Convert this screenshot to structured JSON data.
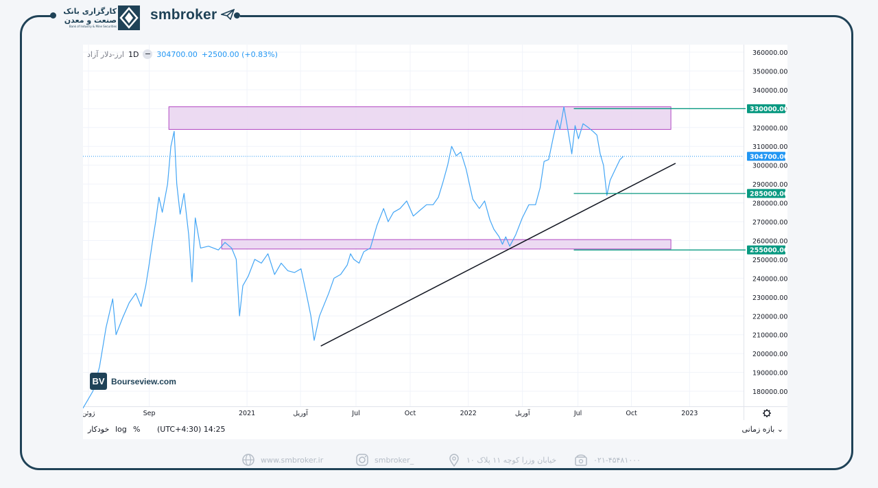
{
  "brand": {
    "bank_line1": "کارگزاری بانک",
    "bank_line2": "صنعت و معدن",
    "bank_line3": "Bank of Industry & Mine Securities",
    "site": "smbroker"
  },
  "symbol": {
    "name": "ارز-دلار آزاد",
    "timeframe": "1D",
    "price": "304700.00",
    "change": "+2500.00 (+0.83%)"
  },
  "watermark": {
    "badge": "BV",
    "text": "Bourseview.com"
  },
  "bottom_bar": {
    "auto": "خودکار",
    "log": "log",
    "percent": "%",
    "time": "(UTC+4:30) 14:25",
    "range": "بازه زمانی ⌄"
  },
  "footer": {
    "website": "www.smbroker.ir",
    "instagram": "smbroker_",
    "address": "خیابان وزرا کوچه ۱۱ پلاک ۱۰",
    "phone": "۰۲۱-۴۵۴۸۱۰۰۰"
  },
  "colors": {
    "frame": "#1f4257",
    "line": "#42a5f5",
    "zone_fill": "#e9d4f0",
    "zone_stroke": "#b146c2",
    "level": "#089981",
    "trendline": "#131722",
    "price_label": "#2196f3"
  },
  "chart_data": {
    "type": "line",
    "ylim": [
      172000,
      364000
    ],
    "y_ticks": [
      180000,
      190000,
      200000,
      210000,
      220000,
      230000,
      240000,
      250000,
      260000,
      270000,
      280000,
      290000,
      300000,
      310000,
      320000,
      330000,
      340000,
      350000,
      360000
    ],
    "y_tick_labels": [
      "180000.00",
      "190000.00",
      "200000.00",
      "210000.00",
      "220000.00",
      "230000.00",
      "240000.00",
      "250000.00",
      "260000.00",
      "270000.00",
      "280000.00",
      "290000.00",
      "300000.00",
      "310000.00",
      "320000.00",
      "330000.00",
      "340000.00",
      "350000.00",
      "360000.00"
    ],
    "x_ticks": [
      "ژوئن",
      "Sep",
      "2021",
      "آوریل",
      "Jul",
      "Oct",
      "2022",
      "آوریل",
      "Jul",
      "Oct",
      "2023"
    ],
    "x_tick_pos": [
      0.0,
      0.092,
      0.24,
      0.321,
      0.405,
      0.487,
      0.575,
      0.657,
      0.741,
      0.822,
      0.91
    ],
    "price_series": [
      [
        0.0,
        171000
      ],
      [
        0.015,
        180000
      ],
      [
        0.025,
        193000
      ],
      [
        0.035,
        214000
      ],
      [
        0.045,
        229000
      ],
      [
        0.05,
        210000
      ],
      [
        0.06,
        219000
      ],
      [
        0.07,
        227000
      ],
      [
        0.08,
        232000
      ],
      [
        0.088,
        225000
      ],
      [
        0.095,
        236000
      ],
      [
        0.1,
        247000
      ],
      [
        0.105,
        259000
      ],
      [
        0.11,
        270000
      ],
      [
        0.115,
        283000
      ],
      [
        0.12,
        275000
      ],
      [
        0.128,
        290000
      ],
      [
        0.133,
        310000
      ],
      [
        0.138,
        318000
      ],
      [
        0.142,
        290000
      ],
      [
        0.147,
        274000
      ],
      [
        0.153,
        285000
      ],
      [
        0.16,
        263000
      ],
      [
        0.165,
        238000
      ],
      [
        0.17,
        272000
      ],
      [
        0.178,
        256000
      ],
      [
        0.19,
        257000
      ],
      [
        0.205,
        255000
      ],
      [
        0.215,
        259000
      ],
      [
        0.225,
        256000
      ],
      [
        0.232,
        250000
      ],
      [
        0.237,
        220000
      ],
      [
        0.242,
        236000
      ],
      [
        0.25,
        241000
      ],
      [
        0.26,
        250000
      ],
      [
        0.27,
        248000
      ],
      [
        0.28,
        253000
      ],
      [
        0.29,
        242000
      ],
      [
        0.3,
        248000
      ],
      [
        0.31,
        244000
      ],
      [
        0.32,
        243000
      ],
      [
        0.33,
        245000
      ],
      [
        0.338,
        232000
      ],
      [
        0.345,
        220000
      ],
      [
        0.35,
        207000
      ],
      [
        0.358,
        220000
      ],
      [
        0.365,
        226000
      ],
      [
        0.372,
        232000
      ],
      [
        0.38,
        240000
      ],
      [
        0.39,
        242000
      ],
      [
        0.4,
        247000
      ],
      [
        0.405,
        253000
      ],
      [
        0.41,
        250000
      ],
      [
        0.418,
        248000
      ],
      [
        0.425,
        254000
      ],
      [
        0.435,
        256000
      ],
      [
        0.445,
        268000
      ],
      [
        0.455,
        277000
      ],
      [
        0.462,
        270000
      ],
      [
        0.47,
        275000
      ],
      [
        0.48,
        277000
      ],
      [
        0.49,
        281000
      ],
      [
        0.5,
        273000
      ],
      [
        0.51,
        276000
      ],
      [
        0.52,
        279000
      ],
      [
        0.53,
        279000
      ],
      [
        0.538,
        283000
      ],
      [
        0.545,
        291000
      ],
      [
        0.552,
        300000
      ],
      [
        0.558,
        310000
      ],
      [
        0.565,
        305000
      ],
      [
        0.572,
        307000
      ],
      [
        0.58,
        298000
      ],
      [
        0.59,
        282000
      ],
      [
        0.6,
        277000
      ],
      [
        0.608,
        281000
      ],
      [
        0.616,
        271000
      ],
      [
        0.622,
        266000
      ],
      [
        0.63,
        262000
      ],
      [
        0.635,
        258000
      ],
      [
        0.64,
        262000
      ],
      [
        0.646,
        257000
      ],
      [
        0.655,
        263000
      ],
      [
        0.665,
        272000
      ],
      [
        0.675,
        279000
      ],
      [
        0.685,
        279000
      ],
      [
        0.692,
        288000
      ],
      [
        0.698,
        302000
      ],
      [
        0.705,
        303000
      ],
      [
        0.712,
        315000
      ],
      [
        0.718,
        324000
      ],
      [
        0.722,
        319000
      ],
      [
        0.728,
        331000
      ],
      [
        0.734,
        319000
      ],
      [
        0.74,
        306000
      ],
      [
        0.745,
        321000
      ],
      [
        0.75,
        314000
      ],
      [
        0.757,
        322000
      ],
      [
        0.765,
        320000
      ],
      [
        0.772,
        318000
      ],
      [
        0.778,
        316000
      ],
      [
        0.783,
        306000
      ],
      [
        0.788,
        300000
      ],
      [
        0.793,
        284000
      ],
      [
        0.798,
        292000
      ],
      [
        0.806,
        298000
      ],
      [
        0.813,
        303000
      ],
      [
        0.818,
        304700
      ]
    ],
    "current_price": 304700,
    "levels": [
      {
        "value": 330000,
        "label": "330000.00",
        "x0": 0.743
      },
      {
        "value": 285000,
        "label": "285000.00",
        "x0": 0.743
      },
      {
        "value": 255000,
        "label": "255000.00",
        "x0": 0.743
      }
    ],
    "zones": [
      {
        "x0": 0.13,
        "x1": 0.89,
        "y_low": 319000,
        "y_high": 331000
      },
      {
        "x0": 0.21,
        "x1": 0.89,
        "y_low": 255500,
        "y_high": 260500
      }
    ],
    "trendline": [
      [
        0.36,
        204000
      ],
      [
        0.897,
        301000
      ]
    ]
  }
}
